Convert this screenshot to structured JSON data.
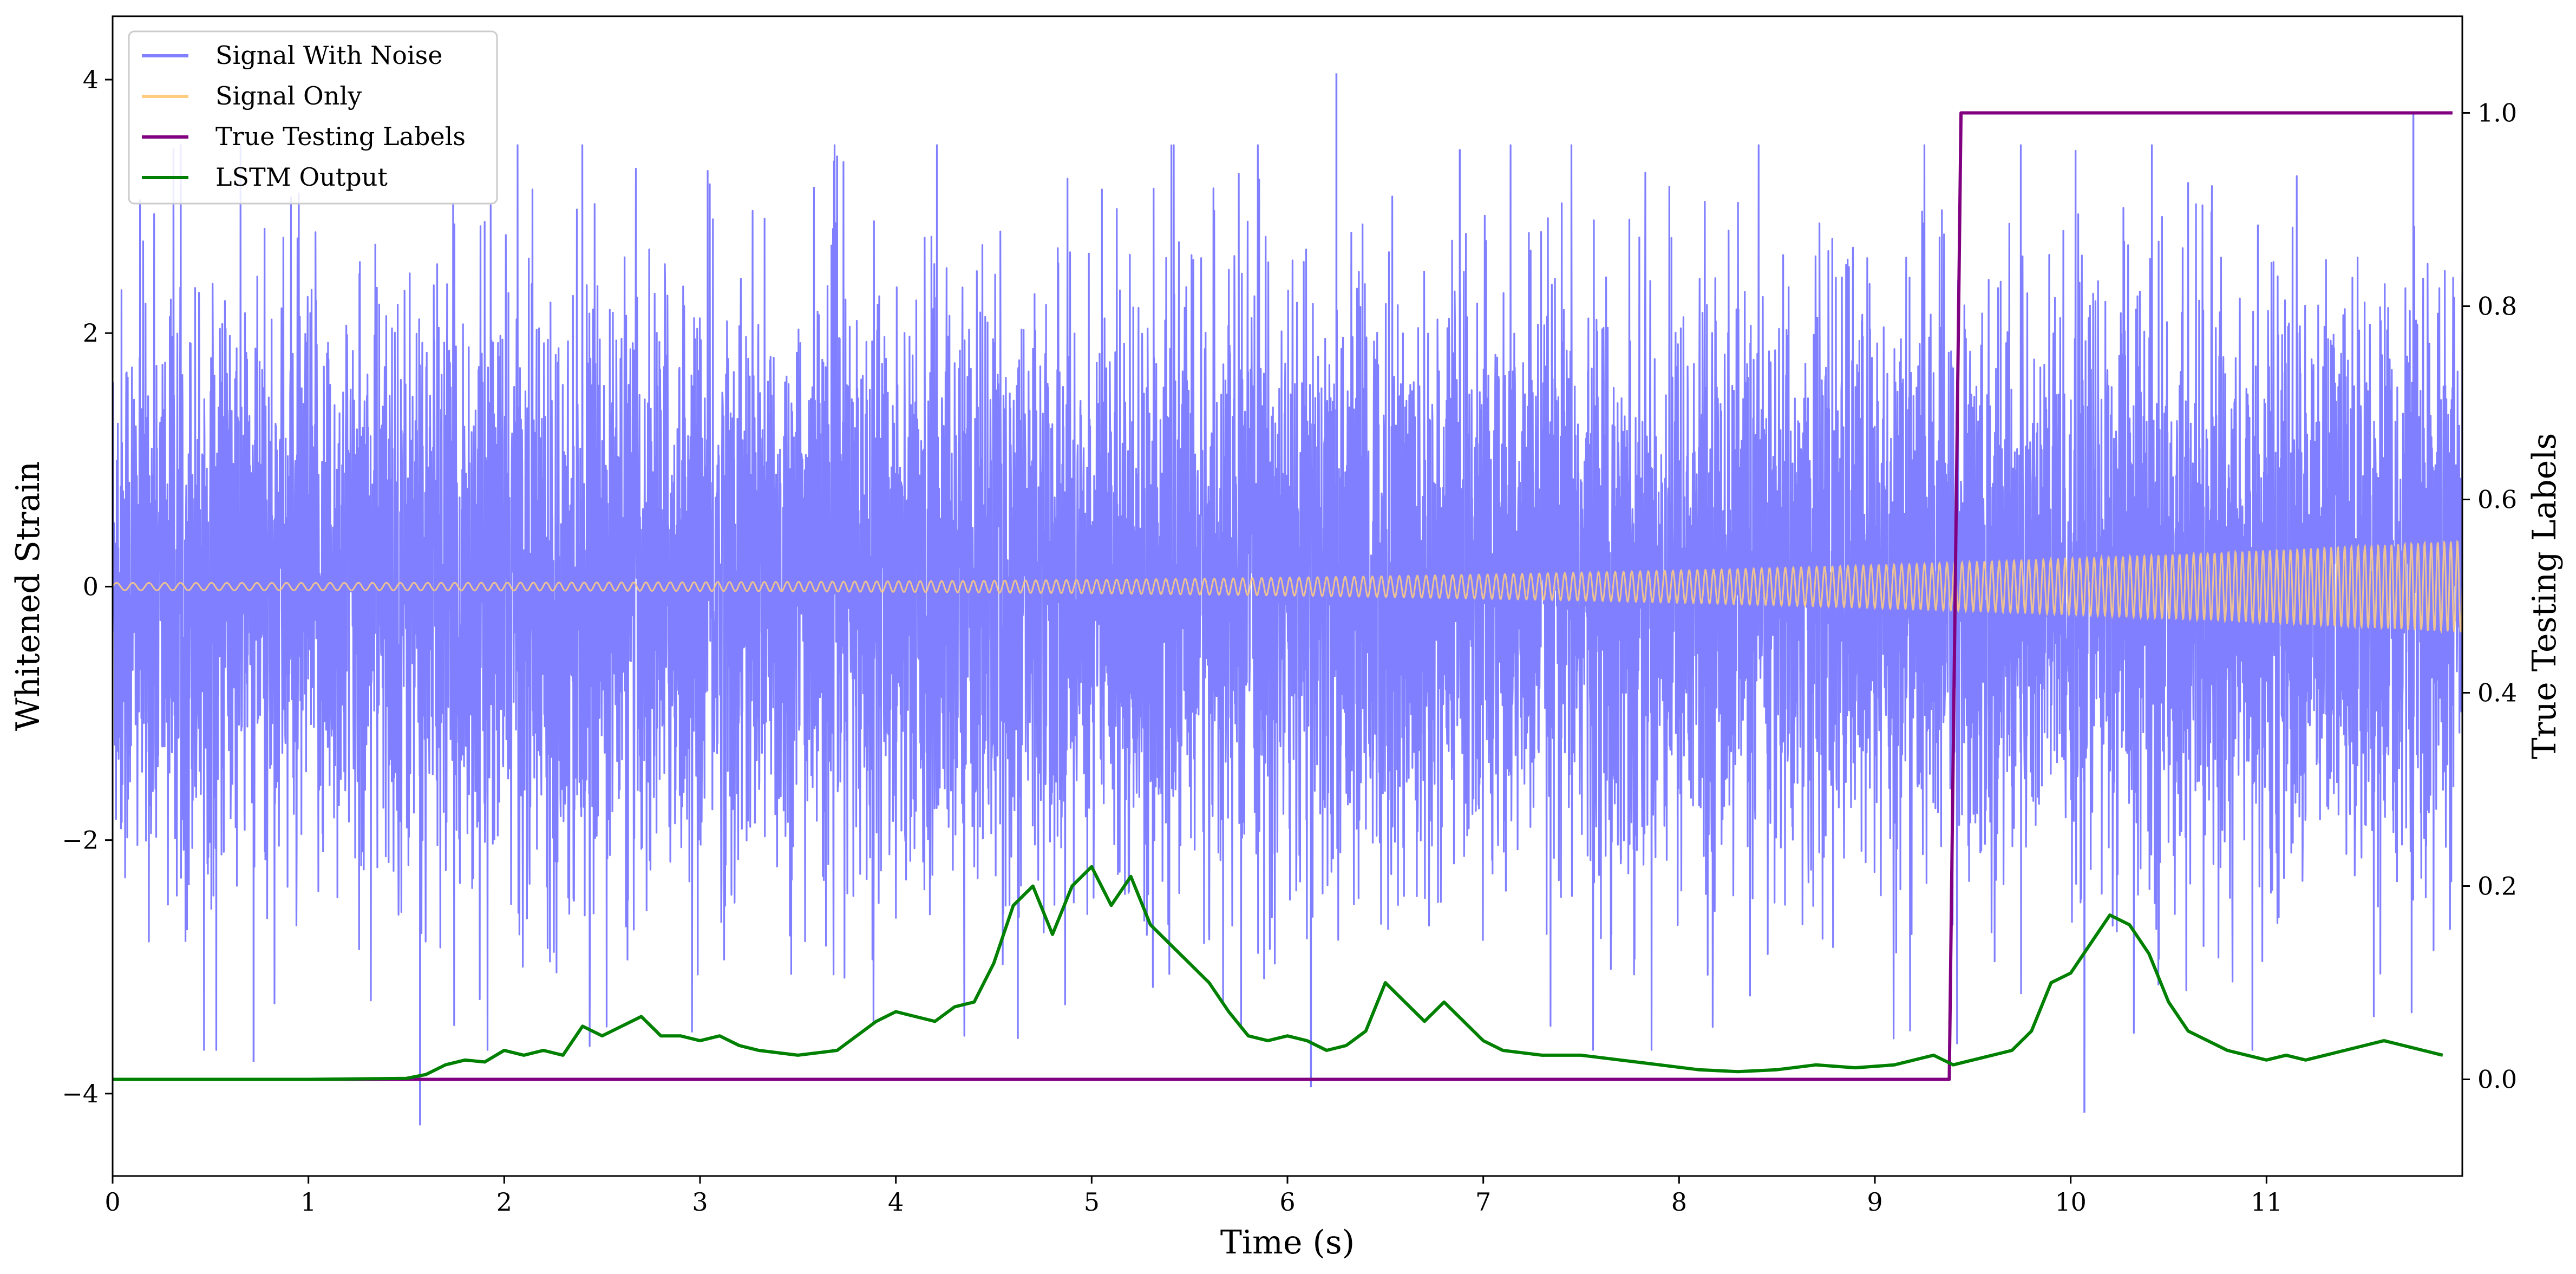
{
  "chart_data": {
    "type": "line",
    "title": "",
    "xlabel": "Time (s)",
    "ylabel_left": "Whitened Strain",
    "ylabel_right": "True Testing Labels",
    "xlim": [
      0,
      12
    ],
    "ylim_left": [
      -4.65,
      4.5
    ],
    "ylim_right": [
      -0.1,
      1.1
    ],
    "x_ticks": [
      "0",
      "1",
      "2",
      "3",
      "4",
      "5",
      "6",
      "7",
      "8",
      "9",
      "10",
      "11"
    ],
    "y_left_ticks": [
      {
        "value": -4,
        "label": "−4"
      },
      {
        "value": -2,
        "label": "−2"
      },
      {
        "value": 0,
        "label": "0"
      },
      {
        "value": 2,
        "label": "2"
      },
      {
        "value": 4,
        "label": "4"
      }
    ],
    "y_right_ticks": [
      {
        "value": 0.0,
        "label": "0.0"
      },
      {
        "value": 0.2,
        "label": "0.2"
      },
      {
        "value": 0.4,
        "label": "0.4"
      },
      {
        "value": 0.6,
        "label": "0.6"
      },
      {
        "value": 0.8,
        "label": "0.8"
      },
      {
        "value": 1.0,
        "label": "1.0"
      }
    ],
    "grid": false,
    "legend_position": "top-left",
    "legend": [
      {
        "name": "Signal With Noise",
        "color": "#7f7fff"
      },
      {
        "name": "Signal Only",
        "color": "#ffcc80"
      },
      {
        "name": "True Testing Labels",
        "color": "#800080"
      },
      {
        "name": "LSTM Output",
        "color": "#008000"
      }
    ],
    "series": [
      {
        "name": "Signal With Noise",
        "axis": "left",
        "color": "#7f7fff",
        "kind": "noise_band",
        "x_range": [
          0,
          12
        ],
        "envelope_typical": [
          -1.5,
          1.5
        ],
        "envelope_extreme": [
          -4.25,
          4.05
        ],
        "spikes": [
          {
            "x": 1.57,
            "y": -4.25
          },
          {
            "x": 6.25,
            "y": 4.05
          },
          {
            "x": 6.12,
            "y": -3.95
          },
          {
            "x": 10.07,
            "y": -4.15
          },
          {
            "x": 11.75,
            "y": 3.75
          },
          {
            "x": 0.72,
            "y": -3.75
          },
          {
            "x": 3.7,
            "y": 3.4
          },
          {
            "x": 6.88,
            "y": 3.45
          }
        ]
      },
      {
        "name": "Signal Only",
        "axis": "left",
        "color": "#ffcc80",
        "kind": "chirp",
        "x_range": [
          0,
          12
        ],
        "amplitude_start": 0.03,
        "amplitude_end": 0.36
      },
      {
        "name": "True Testing Labels",
        "axis": "right",
        "color": "#800080",
        "x": [
          0,
          9.38,
          9.44,
          11.95
        ],
        "y": [
          0,
          0,
          1,
          1
        ]
      },
      {
        "name": "LSTM Output",
        "axis": "right",
        "color": "#008000",
        "x": [
          0,
          0.5,
          1.0,
          1.5,
          1.6,
          1.7,
          1.8,
          1.9,
          2.0,
          2.1,
          2.2,
          2.3,
          2.4,
          2.5,
          2.6,
          2.7,
          2.8,
          2.9,
          3.0,
          3.1,
          3.2,
          3.3,
          3.5,
          3.7,
          3.9,
          4.0,
          4.1,
          4.2,
          4.3,
          4.4,
          4.5,
          4.6,
          4.7,
          4.8,
          4.9,
          5.0,
          5.1,
          5.2,
          5.3,
          5.4,
          5.5,
          5.6,
          5.7,
          5.8,
          5.9,
          6.0,
          6.1,
          6.2,
          6.3,
          6.4,
          6.5,
          6.6,
          6.7,
          6.8,
          6.9,
          7.0,
          7.1,
          7.3,
          7.5,
          7.7,
          7.9,
          8.1,
          8.3,
          8.5,
          8.7,
          8.9,
          9.1,
          9.3,
          9.4,
          9.5,
          9.6,
          9.7,
          9.8,
          9.9,
          10.0,
          10.1,
          10.2,
          10.3,
          10.4,
          10.5,
          10.6,
          10.7,
          10.8,
          10.9,
          11.0,
          11.1,
          11.2,
          11.3,
          11.4,
          11.5,
          11.6,
          11.7,
          11.8,
          11.9
        ],
        "y": [
          0.0,
          0.0,
          0.0,
          0.001,
          0.005,
          0.015,
          0.02,
          0.018,
          0.03,
          0.025,
          0.03,
          0.025,
          0.055,
          0.045,
          0.055,
          0.065,
          0.045,
          0.045,
          0.04,
          0.045,
          0.035,
          0.03,
          0.025,
          0.03,
          0.06,
          0.07,
          0.065,
          0.06,
          0.075,
          0.08,
          0.12,
          0.18,
          0.2,
          0.15,
          0.2,
          0.22,
          0.18,
          0.21,
          0.16,
          0.14,
          0.12,
          0.1,
          0.07,
          0.045,
          0.04,
          0.045,
          0.04,
          0.03,
          0.035,
          0.05,
          0.1,
          0.08,
          0.06,
          0.08,
          0.06,
          0.04,
          0.03,
          0.025,
          0.025,
          0.02,
          0.015,
          0.01,
          0.008,
          0.01,
          0.015,
          0.012,
          0.015,
          0.025,
          0.015,
          0.02,
          0.025,
          0.03,
          0.05,
          0.1,
          0.11,
          0.14,
          0.17,
          0.16,
          0.13,
          0.08,
          0.05,
          0.04,
          0.03,
          0.025,
          0.02,
          0.025,
          0.02,
          0.025,
          0.03,
          0.035,
          0.04,
          0.035,
          0.03,
          0.025
        ]
      }
    ]
  }
}
